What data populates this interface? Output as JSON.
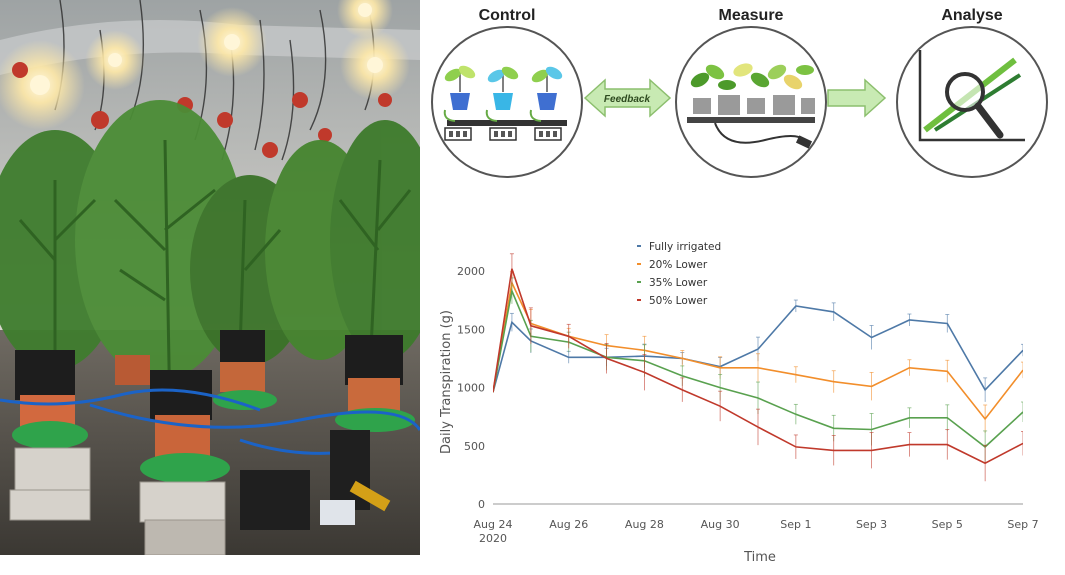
{
  "photo": {
    "subject": "greenhouse-cannabis-plants-on-lysimeter-scales"
  },
  "workflow": {
    "stages": [
      {
        "title": "Control",
        "icon": "potted-plants-with-controllers-icon"
      },
      {
        "title": "Measure",
        "icon": "plants-on-load-cells-icon"
      },
      {
        "title": "Analyse",
        "icon": "magnifier-over-graph-icon"
      }
    ],
    "feedback_label": "Feedback",
    "colors": {
      "arrow": "#c8eab3",
      "arrow_stroke": "#8cbf6e",
      "circle": "#555555"
    }
  },
  "chart_data": {
    "type": "line",
    "title": "",
    "xlabel": "Time",
    "ylabel": "Daily Transpiration (g)",
    "xlim": [
      "2020-08-24",
      "2020-09-07"
    ],
    "ylim": [
      0,
      2250
    ],
    "y_ticks": [
      0,
      500,
      1000,
      1500,
      2000
    ],
    "x_ticks": [
      {
        "date": "2020-08-24",
        "label": "Aug 24",
        "sublabel": "2020"
      },
      {
        "date": "2020-08-26",
        "label": "Aug 26"
      },
      {
        "date": "2020-08-28",
        "label": "Aug 28"
      },
      {
        "date": "2020-08-30",
        "label": "Aug 30"
      },
      {
        "date": "2020-09-01",
        "label": "Sep 1"
      },
      {
        "date": "2020-09-03",
        "label": "Sep 3"
      },
      {
        "date": "2020-09-05",
        "label": "Sep 5"
      },
      {
        "date": "2020-09-07",
        "label": "Sep 7"
      }
    ],
    "legend_position": "top-center",
    "grid": false,
    "series": [
      {
        "name": "Fully irrigated",
        "color": "#4e79a7",
        "x": [
          "2020-08-24",
          "2020-08-24T12:00",
          "2020-08-25",
          "2020-08-26",
          "2020-08-27",
          "2020-08-28",
          "2020-08-29",
          "2020-08-30",
          "2020-08-31",
          "2020-09-01",
          "2020-09-02",
          "2020-09-03",
          "2020-09-04",
          "2020-09-05",
          "2020-09-06",
          "2020-09-07"
        ],
        "y": [
          960,
          1560,
          1400,
          1260,
          1260,
          1270,
          1250,
          1180,
          1330,
          1700,
          1650,
          1430,
          1580,
          1550,
          980,
          1320
        ]
      },
      {
        "name": "20% Lower",
        "color": "#f28e2b",
        "x": [
          "2020-08-24",
          "2020-08-24T12:00",
          "2020-08-25",
          "2020-08-26",
          "2020-08-27",
          "2020-08-28",
          "2020-08-29",
          "2020-08-30",
          "2020-08-31",
          "2020-09-01",
          "2020-09-02",
          "2020-09-03",
          "2020-09-04",
          "2020-09-05",
          "2020-09-06",
          "2020-09-07"
        ],
        "y": [
          960,
          1900,
          1550,
          1440,
          1360,
          1320,
          1250,
          1170,
          1170,
          1110,
          1050,
          1010,
          1170,
          1140,
          730,
          1150
        ]
      },
      {
        "name": "35% Lower",
        "color": "#59a14f",
        "x": [
          "2020-08-24",
          "2020-08-24T12:00",
          "2020-08-25",
          "2020-08-26",
          "2020-08-27",
          "2020-08-28",
          "2020-08-29",
          "2020-08-30",
          "2020-08-31",
          "2020-09-01",
          "2020-09-02",
          "2020-09-03",
          "2020-09-04",
          "2020-09-05",
          "2020-09-06",
          "2020-09-07"
        ],
        "y": [
          960,
          1830,
          1440,
          1390,
          1260,
          1230,
          1100,
          1000,
          910,
          770,
          650,
          640,
          740,
          740,
          490,
          790
        ]
      },
      {
        "name": "50% Lower",
        "color": "#c0392b",
        "x": [
          "2020-08-24",
          "2020-08-24T12:00",
          "2020-08-25",
          "2020-08-26",
          "2020-08-27",
          "2020-08-28",
          "2020-08-29",
          "2020-08-30",
          "2020-08-31",
          "2020-09-01",
          "2020-09-02",
          "2020-09-03",
          "2020-09-04",
          "2020-09-05",
          "2020-09-06",
          "2020-09-07"
        ],
        "y": [
          960,
          2020,
          1530,
          1440,
          1250,
          1130,
          980,
          840,
          660,
          490,
          460,
          460,
          510,
          510,
          350,
          520
        ]
      }
    ]
  }
}
